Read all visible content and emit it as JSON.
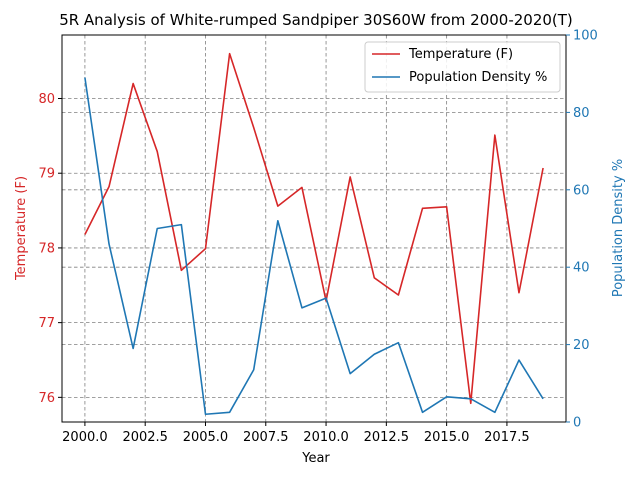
{
  "chart_data": {
    "type": "line",
    "title": "5R Analysis of White-rumped Sandpiper 30S60W from 2000-2020(T)",
    "xlabel": "Year",
    "ylabel_left": "Temperature (F)",
    "ylabel_right": "Population Density %",
    "x": [
      2000,
      2001,
      2002,
      2003,
      2004,
      2005,
      2006,
      2007,
      2008,
      2009,
      2010,
      2011,
      2012,
      2013,
      2014,
      2015,
      2016,
      2017,
      2018,
      2019
    ],
    "xlim": [
      1999.05,
      2019.95
    ],
    "xticks": [
      2000.0,
      2002.5,
      2005.0,
      2007.5,
      2010.0,
      2012.5,
      2015.0,
      2017.5
    ],
    "xtick_labels": [
      "2000.0",
      "2002.5",
      "2005.0",
      "2007.5",
      "2010.0",
      "2012.5",
      "2015.0",
      "2017.5"
    ],
    "ylim_left": [
      75.67,
      80.85
    ],
    "yticks_left": [
      76,
      77,
      78,
      79,
      80
    ],
    "ylim_right": [
      0,
      100
    ],
    "yticks_right": [
      0,
      20,
      40,
      60,
      80,
      100
    ],
    "grid": true,
    "legend_position": "top-right",
    "series": [
      {
        "name": "Temperature (F)",
        "axis": "left",
        "color": "#d62728",
        "values": [
          78.18,
          78.82,
          80.2,
          79.29,
          77.7,
          77.99,
          80.6,
          79.61,
          78.56,
          78.81,
          77.29,
          78.95,
          77.6,
          77.37,
          78.53,
          78.55,
          75.92,
          79.51,
          77.4,
          79.07
        ]
      },
      {
        "name": "Population Density %",
        "axis": "right",
        "color": "#1f77b4",
        "values": [
          89,
          46,
          19,
          50,
          51,
          2,
          2.5,
          13.5,
          52,
          29.5,
          32,
          12.5,
          17.5,
          20.5,
          2.5,
          6.5,
          6,
          2.5,
          16,
          6
        ]
      }
    ]
  }
}
